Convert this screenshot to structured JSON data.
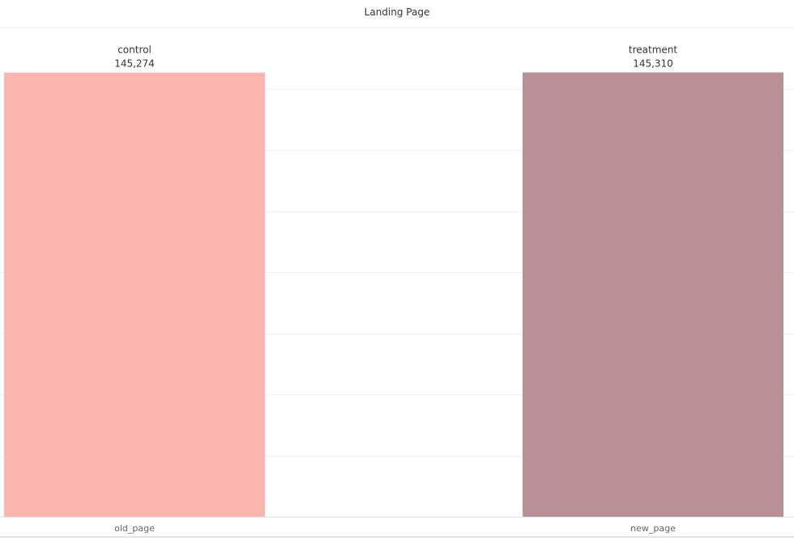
{
  "chart_data": {
    "type": "bar",
    "title": "Landing Page",
    "categories": [
      "old_page",
      "new_page"
    ],
    "groups": [
      "control",
      "treatment"
    ],
    "values": [
      145274,
      145310
    ],
    "value_labels": [
      "145,274",
      "145,310"
    ],
    "bar_colors": [
      "#F9B5AE",
      "#B99096"
    ],
    "xlabel": "",
    "ylabel": "",
    "ylim": [
      0,
      160000
    ],
    "grid": true,
    "legend": "none"
  }
}
